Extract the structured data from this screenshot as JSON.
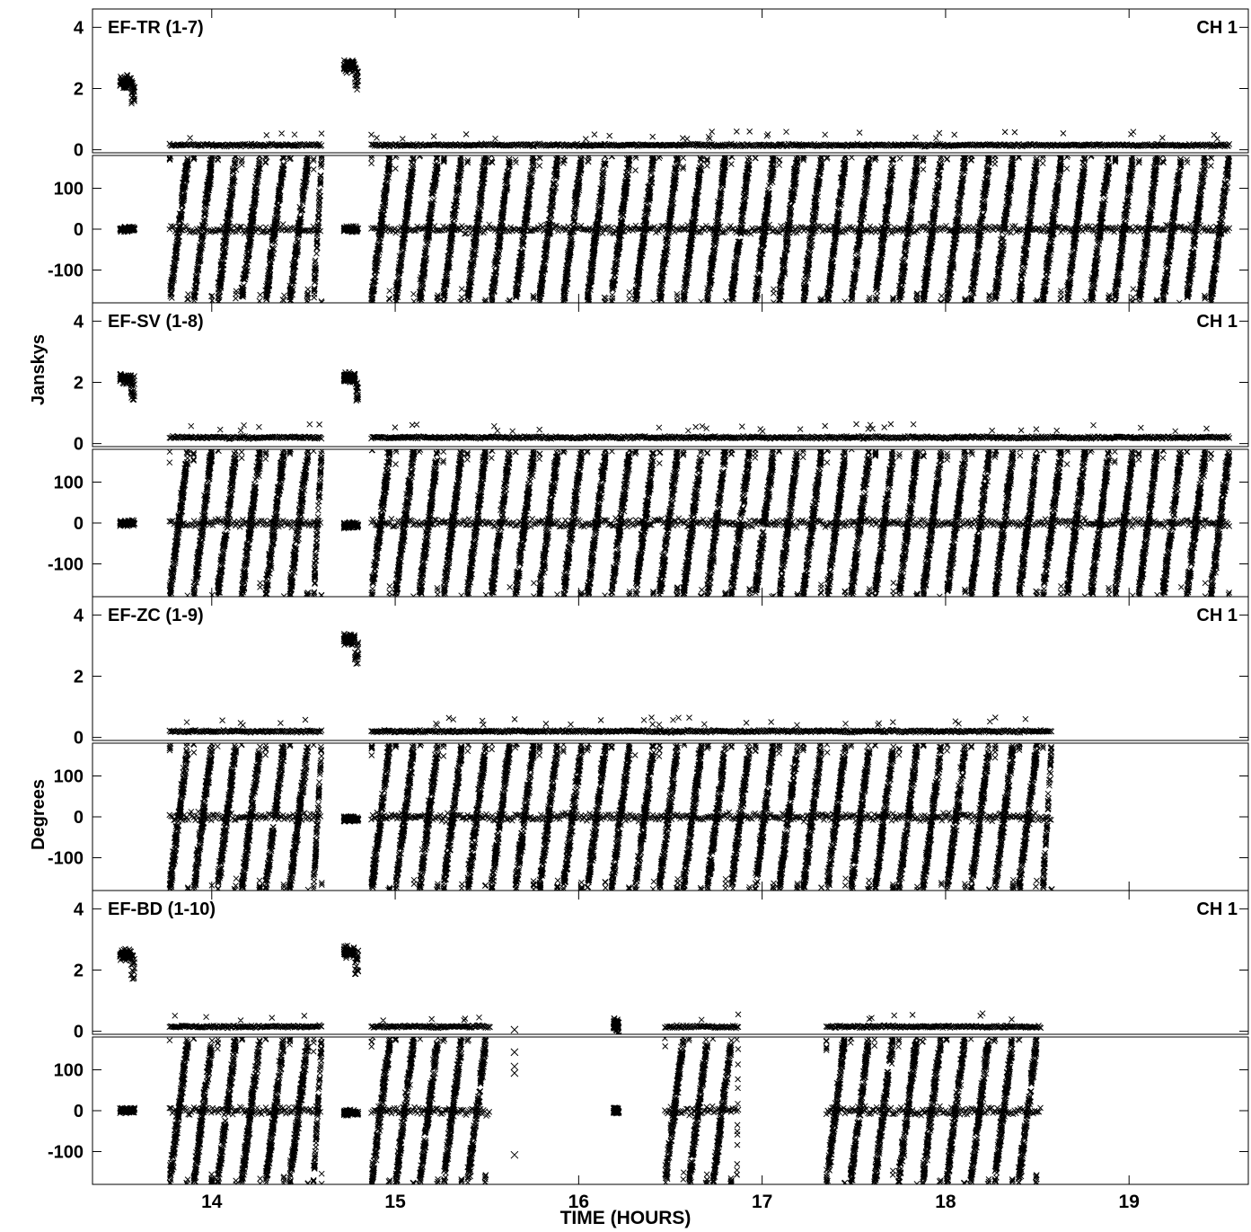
{
  "y_label_amp": "Janskys",
  "y_label_phase": "Degrees",
  "x_label": "TIME (HOURS)",
  "chart_data": {
    "type": "scatter",
    "marker": "x",
    "marker_color": "#000000",
    "x_range": [
      13.35,
      19.65
    ],
    "x_ticks": [
      14,
      15,
      16,
      17,
      18,
      19
    ],
    "amp_ticks": [
      0,
      2,
      4
    ],
    "amp_range": [
      -0.1,
      4.6
    ],
    "phase_ticks": [
      -100,
      0,
      100
    ],
    "phase_range": [
      -180,
      180
    ],
    "panels": [
      {
        "baseline": "EF-TR (1-7)",
        "channel": "CH 1",
        "cal_scans": [
          {
            "t": [
              13.5,
              13.58
            ],
            "amp": 2.2,
            "phase": 0
          },
          {
            "t": [
              14.72,
              14.8
            ],
            "amp": 2.75,
            "phase": 0
          }
        ],
        "target_segments": [
          [
            13.77,
            14.6
          ],
          [
            14.87,
            19.55
          ]
        ],
        "target_amp": 0.15
      },
      {
        "baseline": "EF-SV (1-8)",
        "channel": "CH 1",
        "cal_scans": [
          {
            "t": [
              13.5,
              13.58
            ],
            "amp": 2.1,
            "phase": 0
          },
          {
            "t": [
              14.72,
              14.8
            ],
            "amp": 2.15,
            "phase": -5
          }
        ],
        "target_segments": [
          [
            13.77,
            14.6
          ],
          [
            14.87,
            19.55
          ]
        ],
        "target_amp": 0.2
      },
      {
        "baseline": "EF-ZC (1-9)",
        "channel": "CH 1",
        "cal_scans": [
          {
            "t": [
              14.72,
              14.8
            ],
            "amp": 3.2,
            "phase": -5
          }
        ],
        "target_segments": [
          [
            13.77,
            14.6
          ],
          [
            14.87,
            18.58
          ]
        ],
        "target_amp": 0.2
      },
      {
        "baseline": "EF-BD (1-10)",
        "channel": "CH 1",
        "cal_scans": [
          {
            "t": [
              13.5,
              13.58
            ],
            "amp": 2.5,
            "phase": 0
          },
          {
            "t": [
              14.72,
              14.8
            ],
            "amp": 2.6,
            "phase": -5
          },
          {
            "t": [
              16.19,
              16.22
            ],
            "amp": 0.25,
            "phase": 0
          }
        ],
        "target_segments": [
          [
            13.77,
            14.6
          ],
          [
            14.87,
            15.52
          ],
          [
            16.47,
            16.87
          ],
          [
            17.35,
            18.52
          ]
        ],
        "target_amp": 0.15,
        "outliers": [
          [
            15.65,
            0.05,
            143
          ],
          [
            15.65,
            0.05,
            108
          ],
          [
            15.65,
            0.05,
            92
          ],
          [
            15.65,
            0.05,
            -108
          ]
        ]
      }
    ]
  }
}
